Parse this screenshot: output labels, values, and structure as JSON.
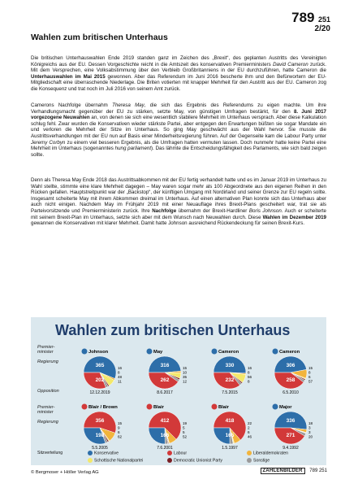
{
  "header": {
    "number": "789",
    "number_small": "251",
    "page": "2/20"
  },
  "article": {
    "title": "Wahlen zum britischen Unterhaus",
    "p1_html": "Die britischen Unterhauswahlen Ende 2019 standen ganz im Zeichen des „Brexit“, des geplanten Austritts des Vereinigten Königreichs aus der EU. Dessen Vorgeschichte reicht in die Amtszeit des konservativen Premierministers <i>David Cameron</i> zurück. Mit dem Versprechen, eine Volksabstimmung über den Verbleib Großbritanniens in der EU durchzuführen, hatte Cameron die <b>Unterhauswahlen im Mai 2015</b> gewonnen. Aber das Referendum im Juni 2016 bescherte ihm und den Befürwortern der EU-Mitgliedschaft eine überraschende Niederlage. Die Briten votierten mit knapper Mehrheit für den Austritt aus der EU. Cameron zog die Konsequenz und trat noch im Juli 2016 von seinem Amt zurück.",
    "p2_html": "Camerons Nachfolge übernahm <i>Theresa May</i>, die sich das Ergebnis des Referendums zu eigen machte. Um ihre Verhandlungsmacht gegenüber der EU zu stärken, setzte May, von günstigen Umfragen bestärkt, für den <b>8. Juni 2017 vorgezogene Neuwahlen</b> an, von denen sie sich eine wesentlich stabilere Mehrheit im Unterhaus versprach. Aber diese Kalkulation schlug fehl. Zwar wurden die Konservativen wieder stärkste Partei, aber entgegen den Erwartungen büßten sie sogar Mandate ein und verloren die Mehrheit der Sitze im Unterhaus. So ging May geschwächt aus der Wahl hervor. Sie musste die Austrittsverhandlungen mit der EU nun auf Basis einer Minderheitsregierung führen. Auf der Gegenseite kam die Labour Party unter <i>Jeremy Corbyn</i> zu einem viel besseren Ergebnis, als die Umfragen hatten vermuten lassen. Doch nunmehr hatte keine Partei eine Mehrheit im Unterhaus (sogenanntes <i>hung parliament</i>). Das lähmte die Entscheidungsfähigkeit des Parlaments, wie sich bald zeigen sollte.",
    "p3_html": "Denn als Theresa May Ende 2018 das Austrittsabkommen mit der EU fertig verhandelt hatte und es im Januar 2019 im Unterhaus zu Wahl stellte, stimmte eine klare Mehrheit dagegen – May waren sogar mehr als 100 Abgeordnete aus den eigenen Reihen in den Rücken gefallen. Hauptstreitpunkt war der „Backstop“, der künftigen Umgang mit Nordirland und seiner Grenze zur EU regeln sollte. Insgesamt scheiterte May mit ihrem Abkommen dreimal im Unterhaus. Auf einen alternativen Plan konnte sich das Unterhaus aber auch nicht einigen. Nachdem May im Frühjahr 2019 mit einer Neuauflage ihres Brexit-Plans gescheitert war, trat sie als Parteivorsitzende und Premierministerin zurück. Ihre <b>Nachfolge</b> übernahm der Brexit-Hardliner <i>Boris Johnson</i>. Auch er scheiterte mit seinem Brexit-Plan im Unterhaus, setzte sich aber mit dem Wunsch nach Neuwahlen durch. Diese <b>Wahlen im Dezember 2019</b> gewannen die Konservativen mit klarer Mehrheit. Damit hatte Johnson ausreichend Rückendeckung für seinen Brexit-Kurs."
  },
  "graphic": {
    "title": "Wahlen zum britischen Unterhaus",
    "row_labels": {
      "pm": "Premier-\nminister",
      "gov": "Regierung",
      "opp": "Opposition"
    },
    "legend_label": "Sitzverteilung",
    "legend": [
      {
        "name": "Konservative",
        "color": "#2d6ea9"
      },
      {
        "name": "Labour",
        "color": "#d23939"
      },
      {
        "name": "Liberaldemokraten",
        "color": "#f2b43c"
      },
      {
        "name": "Schottische Nationalpartei",
        "color": "#f3e86a"
      },
      {
        "name": "Democratic Unionist Party",
        "color": "#7a1f24"
      },
      {
        "name": "Sonstige",
        "color": "#9a9a9a"
      }
    ]
  },
  "chart_data": {
    "type": "pie",
    "elections": [
      {
        "date": "12.12.2019",
        "pm": "Johnson",
        "gov_party": "Konservative",
        "values": {
          "Konservative": 365,
          "Labour": 202,
          "Liberaldemokraten": 11,
          "Schottische Nationalpartei": 48,
          "Democratic Unionist Party": 8,
          "Sonstige": 16
        }
      },
      {
        "date": "8.6.2017",
        "pm": "May",
        "gov_party": "Konservative",
        "values": {
          "Konservative": 316,
          "Labour": 262,
          "Liberaldemokraten": 12,
          "Schottische Nationalpartei": 35,
          "Democratic Unionist Party": 10,
          "Sonstige": 15
        }
      },
      {
        "date": "7.5.2015",
        "pm": "Cameron",
        "gov_party": "Konservative",
        "values": {
          "Konservative": 330,
          "Labour": 232,
          "Liberaldemokraten": 8,
          "Schottische Nationalpartei": 56,
          "Democratic Unionist Party": 8,
          "Sonstige": 16
        }
      },
      {
        "date": "6.5.2010",
        "pm": "Cameron",
        "gov_party": "Konservative",
        "values": {
          "Konservative": 306,
          "Labour": 258,
          "Liberaldemokraten": 57,
          "Schottische Nationalpartei": 6,
          "Democratic Unionist Party": 8,
          "Sonstige": 15
        }
      },
      {
        "date": "5.5.2005",
        "pm": "Blair",
        "pm2": "Brown",
        "gov_party": "Labour",
        "values": {
          "Labour": 356,
          "Konservative": 198,
          "Liberaldemokraten": 62,
          "Schottische Nationalpartei": 6,
          "Democratic Unionist Party": 9,
          "Sonstige": 15
        }
      },
      {
        "date": "7.6.2001",
        "pm": "Blair",
        "gov_party": "Labour",
        "values": {
          "Labour": 412,
          "Konservative": 166,
          "Liberaldemokraten": 52,
          "Schottische Nationalpartei": 5,
          "Democratic Unionist Party": 5,
          "Sonstige": 19
        }
      },
      {
        "date": "1.5.1997",
        "pm": "Blair",
        "gov_party": "Labour",
        "values": {
          "Labour": 418,
          "Konservative": 165,
          "Liberaldemokraten": 46,
          "Schottische Nationalpartei": 6,
          "Democratic Unionist Party": 2,
          "Sonstige": 22
        }
      },
      {
        "date": "9.4.1992",
        "pm": "Major",
        "gov_party": "Konservative",
        "values": {
          "Konservative": 336,
          "Labour": 271,
          "Liberaldemokraten": 20,
          "Schottische Nationalpartei": 3,
          "Democratic Unionist Party": 3,
          "Sonstige": 18
        }
      }
    ]
  },
  "footer": {
    "copyright": "© Bergmoser + Höller Verlag AG",
    "brand": "ZAHLENBILDER",
    "number": "789 251"
  }
}
